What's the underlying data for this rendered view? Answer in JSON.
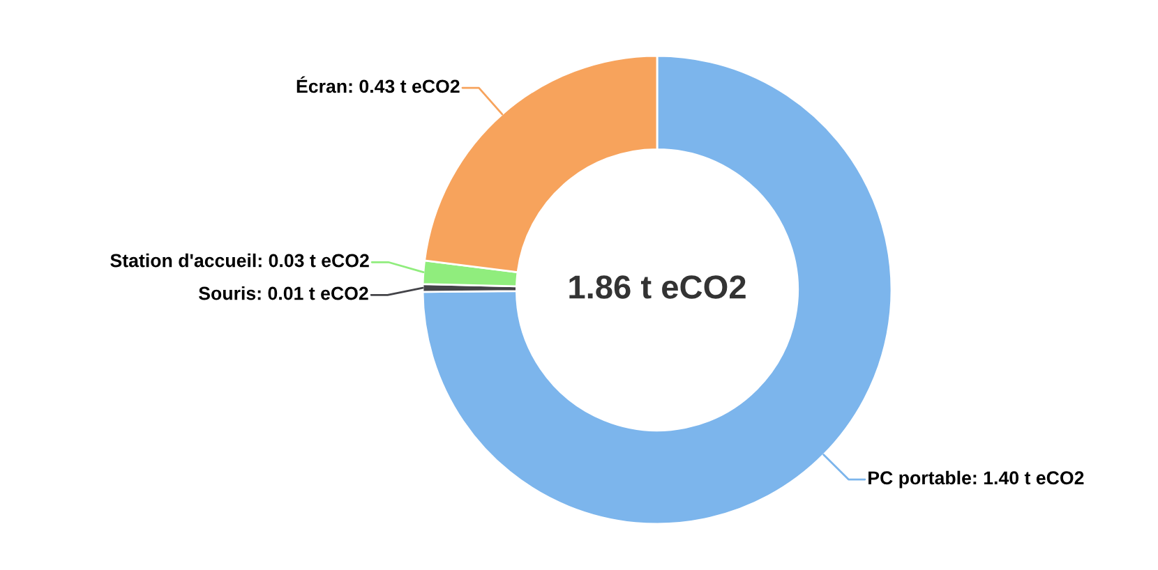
{
  "chart_data": {
    "type": "donut",
    "categories": [
      "PC portable",
      "Souris",
      "Station d'accueil",
      "Écran"
    ],
    "values": [
      1.4,
      0.01,
      0.03,
      0.43
    ],
    "colors": [
      "#7cb5ec",
      "#434348",
      "#90ed7d",
      "#f7a35c"
    ],
    "value_labels": [
      "1.40 t eCO2",
      "0.01 t eCO2",
      "0.03 t eCO2",
      "0.43 t eCO2"
    ],
    "annotations": [
      "1.86 t eCO2"
    ]
  }
}
